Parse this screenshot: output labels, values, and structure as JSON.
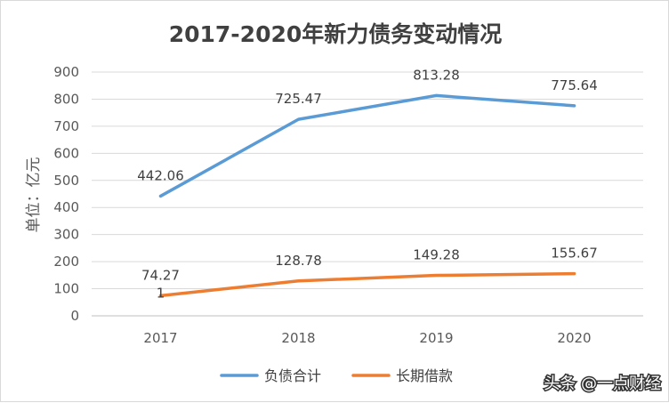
{
  "chart_data": {
    "type": "line",
    "title": "2017-2020年新力债务变动情况",
    "xlabel": "",
    "ylabel": "单位：亿元",
    "categories": [
      "2017",
      "2018",
      "2019",
      "2020"
    ],
    "ylim": [
      0,
      900
    ],
    "yticks": [
      "0",
      "100",
      "200",
      "300",
      "400",
      "500",
      "600",
      "700",
      "800",
      "900"
    ],
    "grid": true,
    "legend_position": "bottom",
    "series": [
      {
        "name": "负债合计",
        "color": "#5b9bd5",
        "values": [
          442.06,
          725.47,
          813.28,
          775.64
        ],
        "labels": [
          "442.06",
          "725.47",
          "813.28",
          "775.64"
        ]
      },
      {
        "name": "长期借款",
        "color": "#ed7d31",
        "values": [
          74.271,
          128.78,
          149.28,
          155.67
        ],
        "labels": [
          "74.27",
          "128.78",
          "149.28",
          "155.67"
        ],
        "label_overflow": "1"
      }
    ]
  },
  "watermark": {
    "text": "头条 @一点财经"
  }
}
